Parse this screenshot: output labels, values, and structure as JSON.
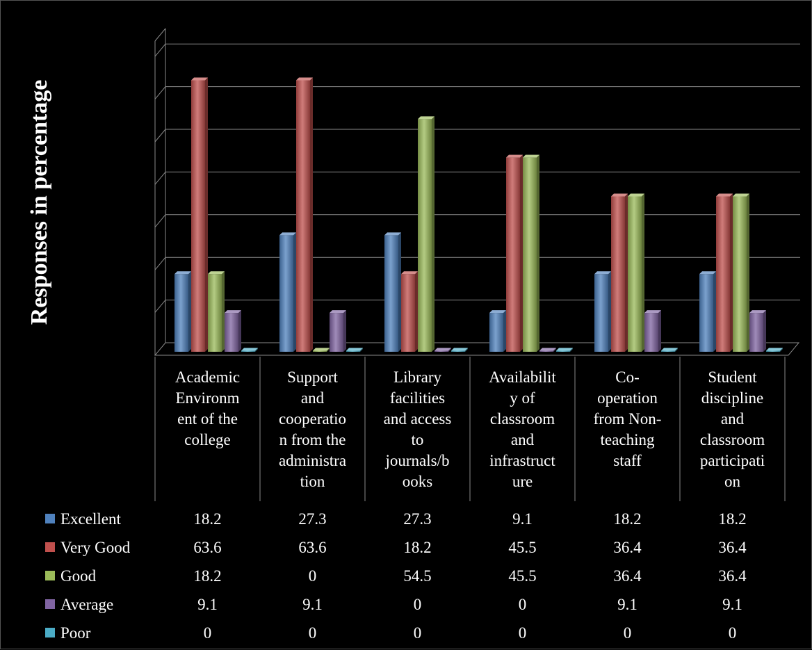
{
  "chart_data": {
    "type": "bar",
    "title": "",
    "xlabel": "",
    "ylabel": "Responses in percentage",
    "ylim": [
      0,
      70
    ],
    "grid": true,
    "legend_placement": "data-table-left",
    "categories": [
      [
        "Academic",
        "Environm",
        "ent of the",
        "college"
      ],
      [
        "Support",
        "and",
        "cooperatio",
        "n from the",
        "administra",
        "tion"
      ],
      [
        "Library",
        "facilities",
        "and access",
        "to",
        "journals/b",
        "ooks"
      ],
      [
        "Availabilit",
        "y of",
        "classroom",
        "and",
        "infrastruct",
        "ure"
      ],
      [
        "Co-",
        "operation",
        "from Non-",
        "teaching",
        "staff"
      ],
      [
        "Student",
        "discipline",
        "and",
        "classroom",
        "participati",
        "on"
      ]
    ],
    "series": [
      {
        "name": "Excellent",
        "color": "#4F81BD",
        "values": [
          18.2,
          27.3,
          27.3,
          9.1,
          18.2,
          18.2
        ],
        "labels": [
          "18.2",
          "27.3",
          "27.3",
          "9.1",
          "18.2",
          "18.2"
        ]
      },
      {
        "name": "Very Good",
        "color": "#C0504D",
        "values": [
          63.6,
          63.6,
          18.2,
          45.5,
          36.4,
          36.4
        ],
        "labels": [
          "63.6",
          "63.6",
          "18.2",
          "45.5",
          "36.4",
          "36.4"
        ]
      },
      {
        "name": "Good",
        "color": "#9BBB59",
        "values": [
          18.2,
          0,
          54.5,
          45.5,
          36.4,
          36.4
        ],
        "labels": [
          "18.2",
          "0",
          "54.5",
          "45.5",
          "36.4",
          "36.4"
        ]
      },
      {
        "name": "Average",
        "color": "#8064A2",
        "values": [
          9.1,
          9.1,
          0,
          0,
          9.1,
          9.1
        ],
        "labels": [
          "9.1",
          "9.1",
          "0",
          "0",
          "9.1",
          "9.1"
        ]
      },
      {
        "name": "Poor",
        "color": "#4BACC6",
        "values": [
          0,
          0,
          0,
          0,
          0,
          0
        ],
        "labels": [
          "0",
          "0",
          "0",
          "0",
          "0",
          "0"
        ]
      }
    ]
  }
}
